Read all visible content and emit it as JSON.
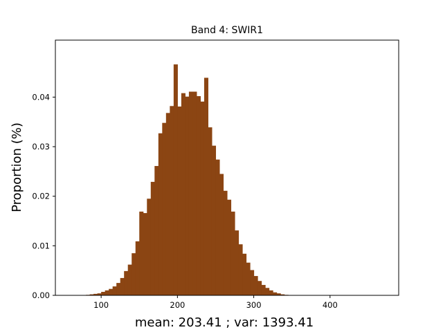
{
  "chart_data": {
    "type": "bar",
    "title": "Band 4: SWIR1",
    "xlabel": "mean: 203.41 ; var: 1393.41",
    "ylabel": "Proportion (%)",
    "xlim": [
      40,
      490
    ],
    "ylim": [
      0,
      0.0515
    ],
    "xticks": [
      100,
      200,
      300,
      400
    ],
    "yticks": [
      0.0,
      0.01,
      0.02,
      0.03,
      0.04
    ],
    "ytick_labels": [
      "0.00",
      "0.01",
      "0.02",
      "0.03",
      "0.04"
    ],
    "grid": false,
    "bar_color": "#8B4513",
    "bin_width": 4.95,
    "bins_start": [
      80.0,
      85.0,
      90.0,
      95.0,
      100.0,
      105.0,
      110.0,
      115.0,
      120.0,
      125.0,
      130.0,
      135.0,
      140.0,
      145.0,
      150.0,
      155.0,
      160.0,
      165.0,
      170.0,
      175.0,
      180.0,
      185.0,
      190.0,
      195.0,
      200.0,
      205.0,
      210.0,
      215.0,
      220.0,
      225.0,
      230.0,
      235.0,
      240.0,
      245.0,
      250.0,
      255.0,
      260.0,
      265.0,
      270.0,
      275.0,
      280.0,
      285.0,
      290.0,
      295.0,
      300.0,
      305.0,
      310.0,
      315.0,
      320.0,
      325.0,
      330.0,
      335.0,
      340.0
    ],
    "values": [
      0.0001,
      0.0002,
      0.0003,
      0.0004,
      0.0007,
      0.001,
      0.0013,
      0.0018,
      0.0025,
      0.0035,
      0.0049,
      0.0062,
      0.0085,
      0.0109,
      0.0169,
      0.0166,
      0.0195,
      0.0229,
      0.0261,
      0.0327,
      0.0348,
      0.0368,
      0.0382,
      0.0466,
      0.0381,
      0.0408,
      0.0401,
      0.0411,
      0.0411,
      0.0402,
      0.0391,
      0.0439,
      0.0339,
      0.0302,
      0.0274,
      0.0245,
      0.0211,
      0.0193,
      0.0169,
      0.0131,
      0.0103,
      0.0084,
      0.0066,
      0.0051,
      0.0039,
      0.0029,
      0.0021,
      0.0015,
      0.001,
      0.0006,
      0.0004,
      0.0002,
      0.0001
    ]
  }
}
